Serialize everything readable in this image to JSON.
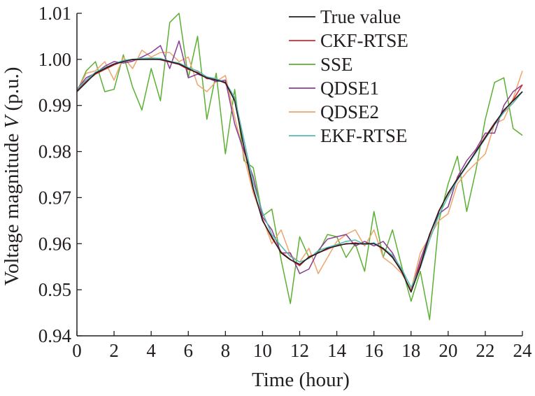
{
  "chart_data": {
    "type": "line",
    "title": "",
    "xlabel": "Time (hour)",
    "ylabel_prefix": "Voltage magnitude ",
    "ylabel_var": "V",
    "ylabel_suffix": " (p.u.)",
    "xlim": [
      0,
      24
    ],
    "ylim": [
      0.94,
      1.01
    ],
    "xticks": [
      0,
      2,
      4,
      6,
      8,
      10,
      12,
      14,
      16,
      18,
      20,
      22,
      24
    ],
    "xtick_labels": [
      "0",
      "2",
      "4",
      "6",
      "8",
      "10",
      "12",
      "14",
      "16",
      "18",
      "20",
      "22",
      "24"
    ],
    "yticks": [
      0.94,
      0.95,
      0.96,
      0.97,
      0.98,
      0.99,
      1.0,
      1.01
    ],
    "ytick_labels": [
      "0.94",
      "0.95",
      "0.96",
      "0.97",
      "0.98",
      "0.99",
      "1.00",
      "1.01"
    ],
    "grid": false,
    "legend_position": "top-right",
    "series": [
      {
        "name": "True value",
        "color": "#231f20",
        "x": [
          0,
          0.5,
          1,
          1.5,
          2,
          2.5,
          3,
          3.5,
          4,
          4.5,
          5,
          5.5,
          6,
          6.5,
          7,
          7.5,
          8,
          8.5,
          9,
          9.5,
          10,
          10.5,
          11,
          11.5,
          12,
          12.5,
          13,
          13.5,
          14,
          14.5,
          15,
          15.5,
          16,
          16.5,
          17,
          17.5,
          18,
          18.5,
          19,
          19.5,
          20,
          20.5,
          21,
          21.5,
          22,
          22.5,
          23,
          23.5,
          24
        ],
        "y": [
          0.993,
          0.995,
          0.997,
          0.998,
          0.999,
          0.9995,
          1.0,
          1.0,
          1.0,
          1.0,
          0.9995,
          0.999,
          0.998,
          0.997,
          0.996,
          0.9955,
          0.995,
          0.991,
          0.981,
          0.972,
          0.965,
          0.9615,
          0.958,
          0.9565,
          0.9555,
          0.957,
          0.958,
          0.959,
          0.9595,
          0.96,
          0.96,
          0.96,
          0.96,
          0.959,
          0.957,
          0.954,
          0.9495,
          0.955,
          0.962,
          0.967,
          0.971,
          0.974,
          0.977,
          0.98,
          0.983,
          0.986,
          0.989,
          0.991,
          0.993
        ]
      },
      {
        "name": "CKF-RTSE",
        "color": "#d7282f",
        "x": [
          0,
          0.5,
          1,
          1.5,
          2,
          2.5,
          3,
          3.5,
          4,
          4.5,
          5,
          5.5,
          6,
          6.5,
          7,
          7.5,
          8,
          8.5,
          9,
          9.5,
          10,
          10.5,
          11,
          11.5,
          12,
          12.5,
          13,
          13.5,
          14,
          14.5,
          15,
          15.5,
          16,
          16.5,
          17,
          17.5,
          18,
          18.5,
          19,
          19.5,
          20,
          20.5,
          21,
          21.5,
          22,
          22.5,
          23,
          23.5,
          24
        ],
        "y": [
          0.9932,
          0.9952,
          0.9968,
          0.9978,
          0.9988,
          0.9996,
          0.9999,
          1.0,
          1.0002,
          0.9999,
          0.9994,
          0.9989,
          0.9978,
          0.9972,
          0.9958,
          0.9957,
          0.9948,
          0.9912,
          0.9808,
          0.9718,
          0.9652,
          0.9612,
          0.9582,
          0.9566,
          0.9552,
          0.9572,
          0.958,
          0.9588,
          0.9597,
          0.9599,
          0.9602,
          0.9598,
          0.9601,
          0.9588,
          0.9572,
          0.9538,
          0.9497,
          0.9555,
          0.9618,
          0.9672,
          0.9708,
          0.9742,
          0.9768,
          0.9801,
          0.9832,
          0.9862,
          0.9888,
          0.9912,
          0.9945
        ]
      },
      {
        "name": "SSE",
        "color": "#5bb033",
        "x": [
          0,
          0.5,
          1,
          1.5,
          2,
          2.5,
          3,
          3.5,
          4,
          4.5,
          5,
          5.5,
          6,
          6.5,
          7,
          7.5,
          8,
          8.5,
          9,
          9.5,
          10,
          10.5,
          11,
          11.5,
          12,
          12.5,
          13,
          13.5,
          14,
          14.5,
          15,
          15.5,
          16,
          16.5,
          17,
          17.5,
          18,
          18.5,
          19,
          19.5,
          20,
          20.5,
          21,
          21.5,
          22,
          22.5,
          23,
          23.5,
          24
        ],
        "y": [
          0.993,
          0.9975,
          0.9995,
          0.993,
          0.9935,
          1.001,
          0.994,
          0.989,
          0.998,
          0.991,
          1.008,
          1.01,
          0.996,
          1.005,
          0.987,
          0.997,
          0.9795,
          0.9935,
          0.978,
          0.9765,
          0.966,
          0.9675,
          0.9565,
          0.947,
          0.9615,
          0.957,
          0.958,
          0.962,
          0.9615,
          0.957,
          0.96,
          0.954,
          0.967,
          0.957,
          0.963,
          0.955,
          0.9475,
          0.954,
          0.9435,
          0.965,
          0.973,
          0.979,
          0.967,
          0.976,
          0.987,
          0.995,
          0.996,
          0.985,
          0.9835
        ]
      },
      {
        "name": "QDSE1",
        "color": "#8b3b94",
        "x": [
          0,
          0.5,
          1,
          1.5,
          2,
          2.5,
          3,
          3.5,
          4,
          4.5,
          5,
          5.5,
          6,
          6.5,
          7,
          7.5,
          8,
          8.5,
          9,
          9.5,
          10,
          10.5,
          11,
          11.5,
          12,
          12.5,
          13,
          13.5,
          14,
          14.5,
          15,
          15.5,
          16,
          16.5,
          17,
          17.5,
          18,
          18.5,
          19,
          19.5,
          20,
          20.5,
          21,
          21.5,
          22,
          22.5,
          23,
          23.5,
          24
        ],
        "y": [
          0.9935,
          0.996,
          0.997,
          0.9985,
          0.9995,
          0.9992,
          0.9996,
          1.0005,
          1.0015,
          1.003,
          0.998,
          1.004,
          0.996,
          0.9968,
          0.996,
          0.9952,
          0.9955,
          0.986,
          0.98,
          0.9745,
          0.9658,
          0.963,
          0.958,
          0.958,
          0.9535,
          0.9545,
          0.9585,
          0.961,
          0.9615,
          0.962,
          0.9595,
          0.9605,
          0.9595,
          0.9605,
          0.958,
          0.954,
          0.9495,
          0.9565,
          0.962,
          0.9665,
          0.968,
          0.9745,
          0.978,
          0.9805,
          0.984,
          0.984,
          0.99,
          0.993,
          0.9945
        ]
      },
      {
        "name": "QDSE2",
        "color": "#eea56b",
        "x": [
          0,
          0.5,
          1,
          1.5,
          2,
          2.5,
          3,
          3.5,
          4,
          4.5,
          5,
          5.5,
          6,
          6.5,
          7,
          7.5,
          8,
          8.5,
          9,
          9.5,
          10,
          10.5,
          11,
          11.5,
          12,
          12.5,
          13,
          13.5,
          14,
          14.5,
          15,
          15.5,
          16,
          16.5,
          17,
          17.5,
          18,
          18.5,
          19,
          19.5,
          20,
          20.5,
          21,
          21.5,
          22,
          22.5,
          23,
          23.5,
          24
        ],
        "y": [
          0.993,
          0.997,
          0.9975,
          0.9995,
          0.9955,
          1.0005,
          0.998,
          1.002,
          1.0005,
          1.0015,
          1.0015,
          0.9995,
          1.0005,
          0.9945,
          0.993,
          0.9952,
          0.9965,
          0.9875,
          0.979,
          0.971,
          0.9655,
          0.96,
          0.963,
          0.9575,
          0.956,
          0.959,
          0.9535,
          0.957,
          0.9605,
          0.962,
          0.963,
          0.9595,
          0.963,
          0.957,
          0.9555,
          0.9535,
          0.95,
          0.958,
          0.9615,
          0.965,
          0.9665,
          0.973,
          0.9755,
          0.9775,
          0.9795,
          0.986,
          0.987,
          0.9915,
          0.9975
        ]
      },
      {
        "name": "EKF-RTSE",
        "color": "#55b9b1",
        "x": [
          0,
          0.5,
          1,
          1.5,
          2,
          2.5,
          3,
          3.5,
          4,
          4.5,
          5,
          5.5,
          6,
          6.5,
          7,
          7.5,
          8,
          8.5,
          9,
          9.5,
          10,
          10.5,
          11,
          11.5,
          12,
          12.5,
          13,
          13.5,
          14,
          14.5,
          15,
          15.5,
          16,
          16.5,
          17,
          17.5,
          18,
          18.5,
          19,
          19.5,
          20,
          20.5,
          21,
          21.5,
          22,
          22.5,
          23,
          23.5,
          24
        ],
        "y": [
          0.9935,
          0.9955,
          0.9972,
          0.9982,
          0.999,
          0.9998,
          1.0,
          1.0002,
          1.0003,
          1.0002,
          0.9996,
          0.9992,
          0.9982,
          0.9975,
          0.9962,
          0.9958,
          0.995,
          0.9918,
          0.9825,
          0.9732,
          0.9668,
          0.962,
          0.9595,
          0.9572,
          0.956,
          0.9568,
          0.9585,
          0.9592,
          0.9598,
          0.9605,
          0.9608,
          0.9598,
          0.9602,
          0.959,
          0.9575,
          0.9545,
          0.9505,
          0.9548,
          0.9608,
          0.9662,
          0.9702,
          0.9738,
          0.9768,
          0.9798,
          0.9828,
          0.9858,
          0.9885,
          0.9905,
          0.993
        ]
      }
    ]
  }
}
